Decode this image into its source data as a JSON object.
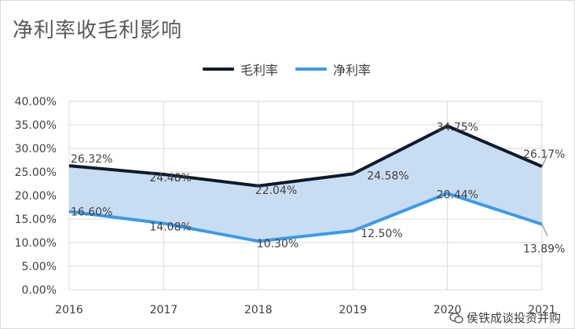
{
  "title": "净利率收毛利影响",
  "watermark_text": "侯铁成谈投资并购",
  "chart_data": {
    "type": "area",
    "categories": [
      "2016",
      "2017",
      "2018",
      "2019",
      "2020",
      "2021"
    ],
    "series": [
      {
        "name": "毛利率",
        "values": [
          26.32,
          24.48,
          22.04,
          24.58,
          34.75,
          26.17
        ],
        "labels": [
          "26.32%",
          "24.48%",
          "22.04%",
          "24.58%",
          "34.75%",
          "26.17%"
        ],
        "color": "#0e1a2b"
      },
      {
        "name": "净利率",
        "values": [
          16.6,
          14.08,
          10.3,
          12.5,
          20.44,
          13.89
        ],
        "labels": [
          "16.60%",
          "14.08%",
          "10.30%",
          "12.50%",
          "20.44%",
          "13.89%"
        ],
        "color": "#3a9be8"
      }
    ],
    "fill_between_color": "#c9ddf2",
    "y_ticks": [
      "0.00%",
      "5.00%",
      "10.00%",
      "15.00%",
      "20.00%",
      "25.00%",
      "30.00%",
      "35.00%",
      "40.00%"
    ],
    "ylim": [
      0,
      40
    ],
    "grid": true,
    "legend_position": "top-center"
  }
}
